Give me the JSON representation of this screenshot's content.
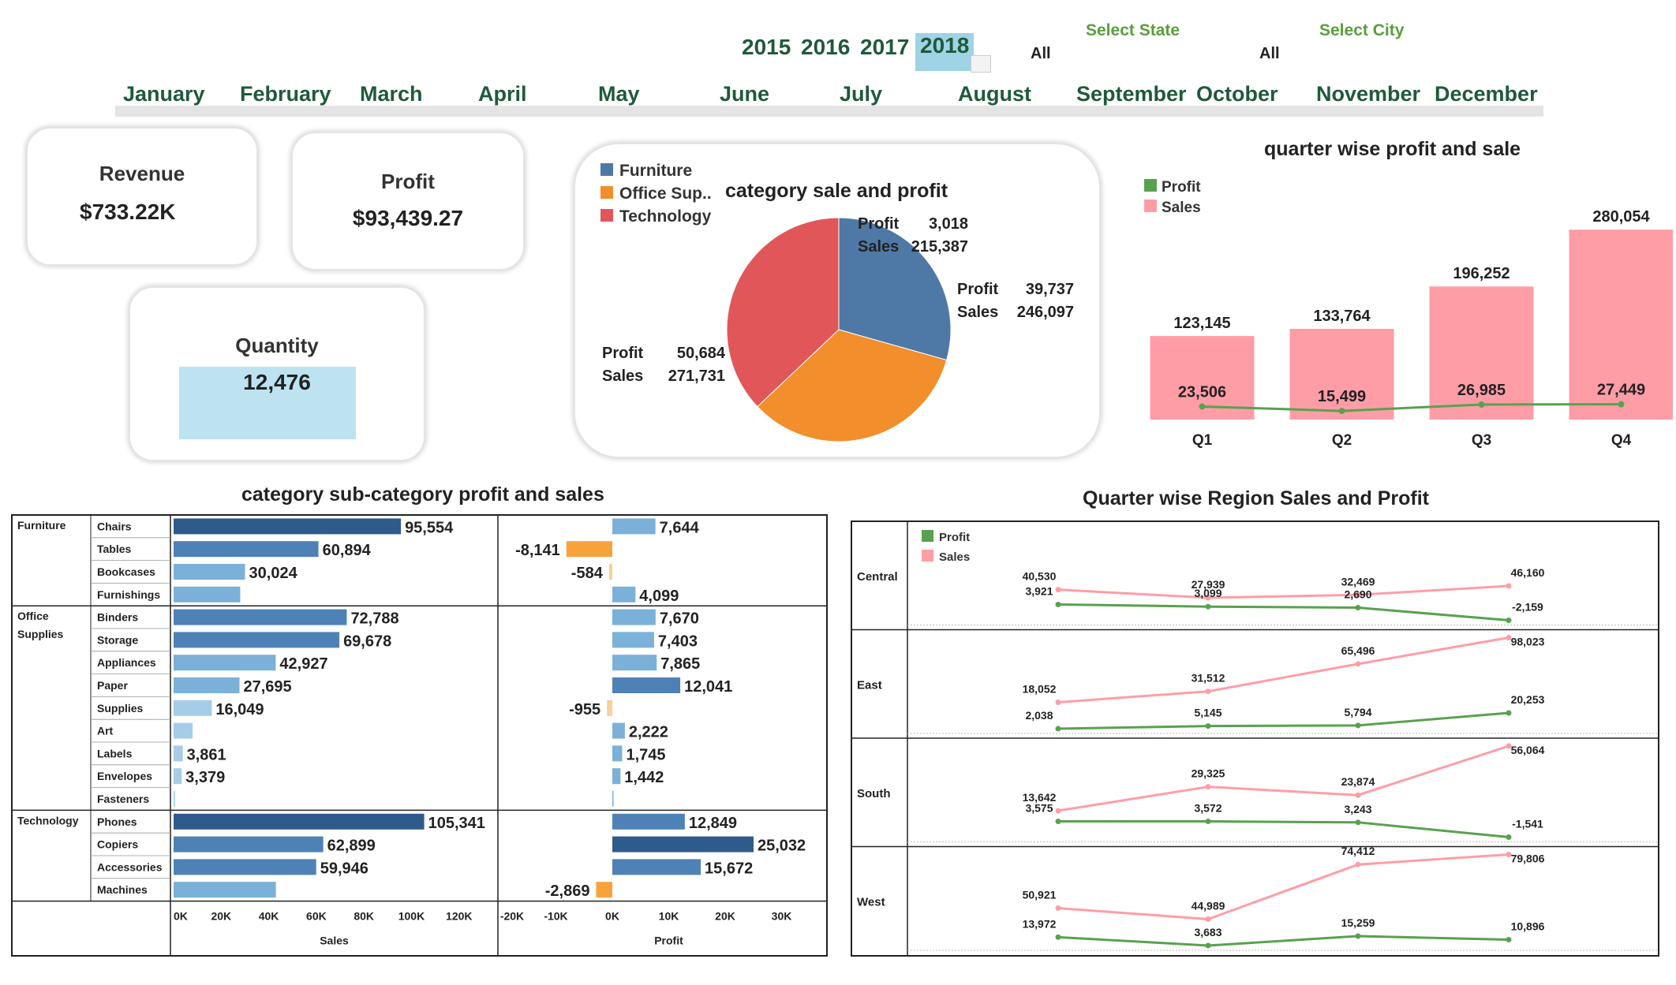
{
  "filters": {
    "years": [
      "2015",
      "2016",
      "2017",
      "2018"
    ],
    "selected_year": "2018",
    "months": [
      "January",
      "February",
      "March",
      "April",
      "May",
      "June",
      "July",
      "August",
      "September",
      "October",
      "November",
      "December"
    ],
    "state": {
      "label": "Select State",
      "value": "All"
    },
    "city": {
      "label": "Select City",
      "value": "All"
    }
  },
  "kpis": {
    "revenue": {
      "label": "Revenue",
      "value": "$733.22K"
    },
    "profit": {
      "label": "Profit",
      "value": "$93,439.27"
    },
    "quantity": {
      "label": "Quantity",
      "value": "12,476"
    }
  },
  "pie": {
    "title": "category sale and profit",
    "profit_label": "Profit",
    "sales_label": "Sales",
    "categories": [
      {
        "name": "Furniture",
        "legend": "Furniture",
        "profit": "3,018",
        "sales": "215,387",
        "sales_value": 215387,
        "color": "#4e79a7"
      },
      {
        "name": "Office Supplies",
        "legend": "Office Sup..",
        "profit": "39,737",
        "sales": "246,097",
        "sales_value": 246097,
        "color": "#f28e2b"
      },
      {
        "name": "Technology",
        "legend": "Technology",
        "profit": "50,684",
        "sales": "271,731",
        "sales_value": 271731,
        "color": "#e15759"
      }
    ]
  },
  "quarter_chart": {
    "title": "quarter wise profit and sale",
    "legend": [
      {
        "name": "Profit",
        "color": "#59a14f"
      },
      {
        "name": "Sales",
        "color": "#ff9da7"
      }
    ],
    "chart_data": {
      "type": "bar",
      "categories": [
        "Q1",
        "Q2",
        "Q3",
        "Q4"
      ],
      "series": [
        {
          "name": "Sales",
          "values": [
            123145,
            133764,
            196252,
            280054
          ],
          "labels": [
            "123,145",
            "133,764",
            "196,252",
            "280,054"
          ]
        },
        {
          "name": "Profit",
          "values": [
            23506,
            15499,
            26985,
            27449
          ],
          "labels": [
            "23,506",
            "15,499",
            "26,985",
            "27,449"
          ]
        }
      ]
    }
  },
  "subcat_chart": {
    "title": "category sub-category profit and sales",
    "sales_axis_label": "Sales",
    "profit_axis_label": "Profit",
    "chart_data": {
      "type": "bar",
      "groups": [
        {
          "category": "Furniture",
          "items": [
            {
              "name": "Chairs",
              "sales": 95554,
              "sales_label": "95,554",
              "profit": 7644,
              "profit_label": "7,644"
            },
            {
              "name": "Tables",
              "sales": 60894,
              "sales_label": "60,894",
              "profit": -8141,
              "profit_label": "-8,141"
            },
            {
              "name": "Bookcases",
              "sales": 30024,
              "sales_label": "30,024",
              "profit": -584,
              "profit_label": "-584"
            },
            {
              "name": "Furnishings",
              "sales": 28000,
              "sales_label": "",
              "profit": 4099,
              "profit_label": "4,099"
            }
          ]
        },
        {
          "category": "Office\nSupplies",
          "items": [
            {
              "name": "Binders",
              "sales": 72788,
              "sales_label": "72,788",
              "profit": 7670,
              "profit_label": "7,670"
            },
            {
              "name": "Storage",
              "sales": 69678,
              "sales_label": "69,678",
              "profit": 7403,
              "profit_label": "7,403"
            },
            {
              "name": "Appliances",
              "sales": 42927,
              "sales_label": "42,927",
              "profit": 7865,
              "profit_label": "7,865"
            },
            {
              "name": "Paper",
              "sales": 27695,
              "sales_label": "27,695",
              "profit": 12041,
              "profit_label": "12,041"
            },
            {
              "name": "Supplies",
              "sales": 16049,
              "sales_label": "16,049",
              "profit": -955,
              "profit_label": "-955"
            },
            {
              "name": "Art",
              "sales": 8000,
              "sales_label": "",
              "profit": 2222,
              "profit_label": "2,222"
            },
            {
              "name": "Labels",
              "sales": 3861,
              "sales_label": "3,861",
              "profit": 1745,
              "profit_label": "1,745"
            },
            {
              "name": "Envelopes",
              "sales": 3379,
              "sales_label": "3,379",
              "profit": 1442,
              "profit_label": "1,442"
            },
            {
              "name": "Fasteners",
              "sales": 600,
              "sales_label": "",
              "profit": 200,
              "profit_label": ""
            }
          ]
        },
        {
          "category": "Technology",
          "items": [
            {
              "name": "Phones",
              "sales": 105341,
              "sales_label": "105,341",
              "profit": 12849,
              "profit_label": "12,849"
            },
            {
              "name": "Copiers",
              "sales": 62899,
              "sales_label": "62,899",
              "profit": 25032,
              "profit_label": "25,032"
            },
            {
              "name": "Accessories",
              "sales": 59946,
              "sales_label": "59,946",
              "profit": 15672,
              "profit_label": "15,672"
            },
            {
              "name": "Machines",
              "sales": 43000,
              "sales_label": "",
              "profit": -2869,
              "profit_label": "-2,869"
            }
          ]
        }
      ],
      "sales_ticks": [
        "0K",
        "20K",
        "40K",
        "60K",
        "80K",
        "100K",
        "120K"
      ],
      "sales_tick_values": [
        0,
        20000,
        40000,
        60000,
        80000,
        100000,
        120000
      ],
      "profit_ticks": [
        "-20K",
        "-10K",
        "0K",
        "10K",
        "20K",
        "30K"
      ],
      "profit_tick_values": [
        -20000,
        -10000,
        0,
        10000,
        20000,
        30000
      ]
    }
  },
  "region_chart": {
    "title": "Quarter wise  Region Sales and Profit",
    "legend": [
      {
        "name": "Profit",
        "color": "#59a14f"
      },
      {
        "name": "Sales",
        "color": "#ff9da7"
      }
    ],
    "chart_data": {
      "type": "line",
      "x": [
        "Q1",
        "Q2",
        "Q3",
        "Q4"
      ],
      "regions": [
        {
          "name": "Central",
          "sales": [
            40530,
            27939,
            32469,
            46160
          ],
          "sales_labels": [
            "40,530",
            "27,939",
            "32,469",
            "46,160"
          ],
          "profit": [
            3921,
            3099,
            2690,
            -2159
          ],
          "profit_labels": [
            "3,921",
            "3,099",
            "2,690",
            "-2,159"
          ]
        },
        {
          "name": "East",
          "sales": [
            18052,
            31512,
            65496,
            98023
          ],
          "sales_labels": [
            "18,052",
            "31,512",
            "65,496",
            "98,023"
          ],
          "profit": [
            2038,
            5145,
            5794,
            20253
          ],
          "profit_labels": [
            "2,038",
            "5,145",
            "5,794",
            "20,253"
          ]
        },
        {
          "name": "South",
          "sales": [
            13642,
            29325,
            23874,
            56064
          ],
          "sales_labels": [
            "13,642",
            "29,325",
            "23,874",
            "56,064"
          ],
          "profit": [
            3575,
            3572,
            3243,
            -1541
          ],
          "profit_labels": [
            "3,575",
            "3,572",
            "3,243",
            "-1,541"
          ]
        },
        {
          "name": "West",
          "sales": [
            50921,
            44989,
            74412,
            79806
          ],
          "sales_labels": [
            "50,921",
            "44,989",
            "74,412",
            "79,806"
          ],
          "profit": [
            13972,
            3683,
            15259,
            10896
          ],
          "profit_labels": [
            "13,972",
            "3,683",
            "15,259",
            "10,896"
          ]
        }
      ]
    }
  }
}
